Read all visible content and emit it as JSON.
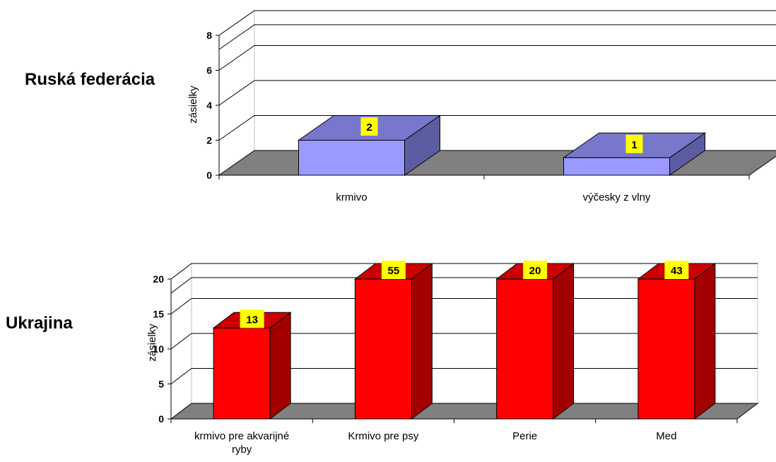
{
  "chart_data": [
    {
      "type": "bar",
      "title": "Ruská federácia",
      "ylabel": "zásielky",
      "ylim": [
        0,
        8
      ],
      "yticks": [
        0,
        2,
        4,
        6,
        8
      ],
      "grid": true,
      "three_d": true,
      "categories": [
        "krmivo",
        "výčesky z vlny"
      ],
      "series": [
        {
          "values": [
            2,
            1
          ],
          "data_labels": [
            "2",
            "1"
          ],
          "color": "#9999FF"
        }
      ]
    },
    {
      "type": "bar",
      "title": "Ukrajina",
      "ylabel": "zásielky",
      "ylim": [
        0,
        20
      ],
      "yticks": [
        0,
        5,
        10,
        15,
        20
      ],
      "grid": true,
      "three_d": true,
      "categories": [
        "krmivo pre akvarijné ryby",
        "Krmivo pre psy",
        "Perie",
        "Med"
      ],
      "series": [
        {
          "values": [
            13,
            55,
            20,
            43
          ],
          "data_labels": [
            "13",
            "55",
            "20",
            "43"
          ],
          "color": "#FF0000"
        }
      ]
    }
  ]
}
